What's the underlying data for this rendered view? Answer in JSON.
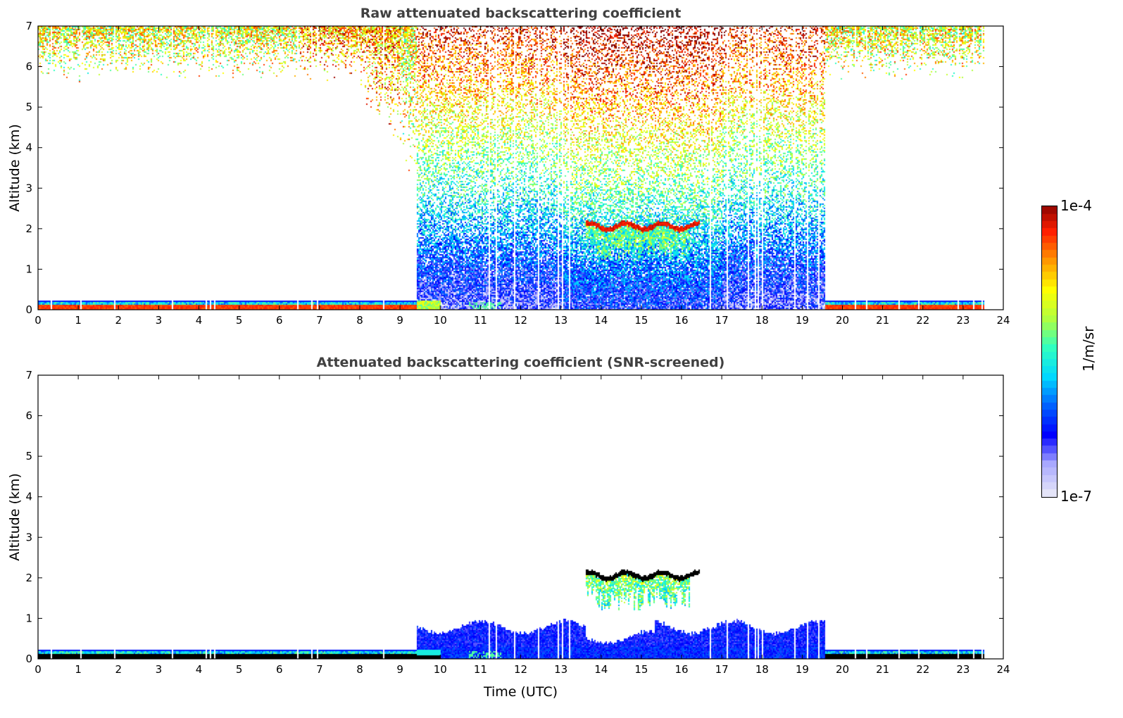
{
  "chart_data": [
    {
      "type": "heatmap",
      "title": "Raw attenuated backscattering coefficient",
      "xlabel": "",
      "ylabel": "Altitude (km)",
      "xlim": [
        0,
        24
      ],
      "ylim": [
        0,
        7
      ],
      "xticks": [
        "0",
        "1",
        "2",
        "3",
        "4",
        "5",
        "6",
        "7",
        "8",
        "9",
        "10",
        "11",
        "12",
        "13",
        "14",
        "15",
        "16",
        "17",
        "18",
        "19",
        "20",
        "21",
        "22",
        "23",
        "24"
      ],
      "yticks": [
        "0",
        "1",
        "2",
        "3",
        "4",
        "5",
        "6",
        "7"
      ],
      "screened": false,
      "data_end_time": 23.5,
      "features": [
        {
          "name": "nighttime surface aerosol layer",
          "t": [
            [
              0,
              9.4
            ],
            [
              19.55,
              23.5
            ]
          ],
          "altitude_km": [
            0,
            0.22
          ],
          "log10_value": -4.3
        },
        {
          "name": "daytime boundary layer",
          "t": [
            [
              9.4,
              19.55
            ]
          ],
          "altitude_km": [
            0,
            1.0
          ],
          "log10_value": -6.4
        },
        {
          "name": "solar background noise",
          "t": [
            [
              8.5,
              19.55
            ]
          ],
          "altitude_km": [
            0,
            7
          ],
          "log10_value_range": [
            -6.8,
            -4.6
          ]
        },
        {
          "name": "upper noise",
          "t": [
            [
              0,
              23.5
            ]
          ],
          "altitude_km": [
            5.5,
            7
          ],
          "log10_value_range": [
            -5.5,
            -4.2
          ]
        },
        {
          "name": "cloud",
          "t": [
            [
              13.6,
              16.45
            ]
          ],
          "altitude_km": [
            2.0,
            2.25
          ],
          "log10_value": -4.1
        },
        {
          "name": "cloud fall streaks",
          "t": [
            [
              13.6,
              16.2
            ]
          ],
          "altitude_km": [
            1.2,
            2.0
          ],
          "log10_value": -5.3
        }
      ]
    },
    {
      "type": "heatmap",
      "title": "Attenuated backscattering coefficient (SNR-screened)",
      "xlabel": "Time (UTC)",
      "ylabel": "Altitude (km)",
      "xlim": [
        0,
        24
      ],
      "ylim": [
        0,
        7
      ],
      "xticks": [
        "0",
        "1",
        "2",
        "3",
        "4",
        "5",
        "6",
        "7",
        "8",
        "9",
        "10",
        "11",
        "12",
        "13",
        "14",
        "15",
        "16",
        "17",
        "18",
        "19",
        "20",
        "21",
        "22",
        "23",
        "24"
      ],
      "yticks": [
        "0",
        "1",
        "2",
        "3",
        "4",
        "5",
        "6",
        "7"
      ],
      "screened": true,
      "data_end_time": 23.5
    }
  ],
  "colorbar": {
    "label": "1/m/sr",
    "max_label": "1e-4",
    "min_label": "1e-7",
    "log10_range": [
      -7,
      -4
    ],
    "saturated_color": "#000000",
    "colors": [
      "#e4e4f8",
      "#a8a8ff",
      "#0000ff",
      "#0060ff",
      "#00d8ff",
      "#30ffc0",
      "#b0ff40",
      "#ffff00",
      "#ff9800",
      "#ff2000",
      "#800000"
    ]
  }
}
